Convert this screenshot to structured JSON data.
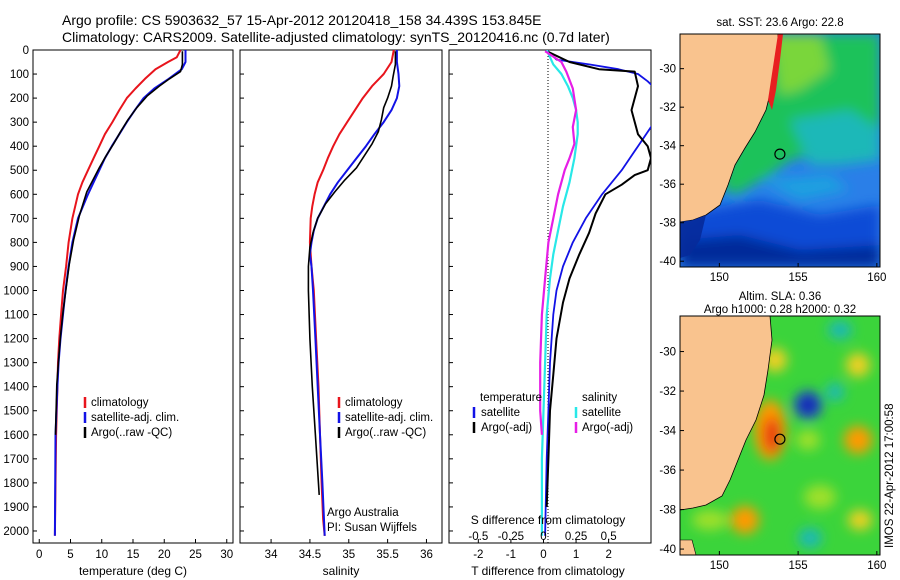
{
  "figure": {
    "title_line1": "Argo profile: CS 5903632_57 15-Apr-2012 20120418_158 34.439S 153.845E",
    "title_line2": "Climatology: CARS2009. Satellite-adjusted climatology: synTS_20120416.nc (0.7d later)",
    "stamp": "IMOS 22-Apr-2012 17:00:58",
    "credit_line1": "Argo Australia",
    "credit_line2": "PI: Susan Wijffels"
  },
  "colors": {
    "climatology": "#e8141c",
    "satellite": "#1212e6",
    "argo": "#000000",
    "satellite_diff": "#28e8e8",
    "argo_adj_diff": "#e61ee6",
    "land": "#f9c38e"
  },
  "depth_axis": {
    "ylim": [
      0,
      2050
    ],
    "ticks": [
      "0",
      "100",
      "200",
      "300",
      "400",
      "500",
      "600",
      "700",
      "800",
      "900",
      "1000",
      "1100",
      "1200",
      "1300",
      "1400",
      "1500",
      "1600",
      "1700",
      "1800",
      "1900",
      "2000"
    ]
  },
  "chart_data": [
    {
      "type": "line",
      "xlabel": "temperature (deg C)",
      "ylabel": "",
      "xlim": [
        -1,
        31
      ],
      "ylim": [
        2050,
        0
      ],
      "xticks": [
        "0",
        "5",
        "10",
        "15",
        "20",
        "25",
        "30"
      ],
      "legend": [
        "climatology",
        "satellite-adj. clim.",
        "Argo(..raw -QC)"
      ],
      "series": [
        {
          "name": "climatology",
          "x": [
            22.6,
            22.0,
            20.6,
            18.6,
            16.9,
            15.4,
            14.0,
            12.8,
            11.7,
            10.5,
            9.6,
            8.7,
            7.8,
            6.9,
            6.2,
            5.3,
            4.7,
            4.3,
            3.8,
            3.5,
            3.2,
            3.0,
            2.9,
            2.7,
            2.6,
            2.5
          ],
          "y": [
            0,
            30,
            50,
            80,
            120,
            160,
            200,
            250,
            300,
            350,
            400,
            450,
            500,
            550,
            600,
            700,
            800,
            900,
            1000,
            1100,
            1200,
            1300,
            1400,
            1600,
            1800,
            2020
          ]
        },
        {
          "name": "satellite-adj. clim.",
          "x": [
            23.4,
            23.4,
            22.8,
            20.7,
            18.4,
            16.7,
            15.3,
            14.0,
            12.8,
            11.6,
            10.5,
            9.6,
            8.7,
            7.8,
            6.2,
            5.3,
            4.7,
            4.2,
            3.8,
            3.4,
            3.1,
            2.9,
            2.6,
            2.5
          ],
          "y": [
            0,
            50,
            80,
            120,
            160,
            200,
            250,
            300,
            350,
            400,
            450,
            500,
            550,
            600,
            700,
            800,
            900,
            1000,
            1100,
            1200,
            1300,
            1400,
            1600,
            2020
          ]
        },
        {
          "name": "Argo(..raw -QC)",
          "x": [
            22.9,
            22.9,
            22.6,
            20.8,
            19.2,
            17.3,
            15.6,
            14.2,
            13.0,
            11.9,
            10.7,
            9.6,
            8.6,
            7.6,
            6.4,
            5.5,
            4.8,
            4.3,
            3.8,
            3.4,
            3.1,
            2.8,
            2.6
          ],
          "y": [
            5,
            60,
            90,
            120,
            150,
            190,
            240,
            290,
            340,
            390,
            440,
            490,
            540,
            590,
            690,
            790,
            890,
            990,
            1090,
            1190,
            1290,
            1390,
            1600
          ]
        }
      ]
    },
    {
      "type": "line",
      "xlabel": "salinity",
      "ylabel": "",
      "xlim": [
        33.6,
        36.2
      ],
      "ylim": [
        2050,
        0
      ],
      "xticks": [
        "34",
        "34.5",
        "35",
        "35.5",
        "36"
      ],
      "legend": [
        "climatology",
        "satellite-adj. clim.",
        "Argo(..raw -QC)"
      ],
      "series": [
        {
          "name": "climatology",
          "x": [
            35.58,
            35.55,
            35.45,
            35.3,
            35.18,
            35.08,
            34.98,
            34.88,
            34.8,
            34.73,
            34.67,
            34.6,
            34.56,
            34.53,
            34.51,
            34.5,
            34.52,
            34.55,
            34.58,
            34.61,
            34.63,
            34.65,
            34.67,
            34.69
          ],
          "y": [
            0,
            50,
            100,
            150,
            200,
            250,
            300,
            350,
            400,
            450,
            500,
            550,
            600,
            650,
            700,
            800,
            900,
            1000,
            1200,
            1400,
            1600,
            1800,
            1950,
            2020
          ]
        },
        {
          "name": "satellite-adj. clim.",
          "x": [
            35.62,
            35.62,
            35.64,
            35.65,
            35.62,
            35.55,
            35.45,
            35.33,
            35.22,
            35.1,
            34.98,
            34.86,
            34.76,
            34.68,
            34.6,
            34.55,
            34.52,
            34.5,
            34.52,
            34.54,
            34.57,
            34.6,
            34.63,
            34.66,
            34.69
          ],
          "y": [
            0,
            50,
            100,
            150,
            200,
            250,
            300,
            350,
            400,
            450,
            500,
            550,
            600,
            650,
            700,
            750,
            800,
            850,
            900,
            1000,
            1200,
            1400,
            1600,
            1800,
            2020
          ]
        },
        {
          "name": "Argo(..raw -QC)",
          "x": [
            35.6,
            35.6,
            35.57,
            35.55,
            35.5,
            35.45,
            35.42,
            35.38,
            35.3,
            35.2,
            35.1,
            34.95,
            34.82,
            34.7,
            34.6,
            34.54,
            34.5,
            34.48,
            34.48,
            34.5,
            34.53,
            34.57,
            34.62
          ],
          "y": [
            5,
            60,
            110,
            150,
            200,
            240,
            290,
            340,
            390,
            440,
            490,
            540,
            590,
            640,
            700,
            760,
            820,
            900,
            1000,
            1200,
            1400,
            1600,
            1850
          ]
        }
      ]
    },
    {
      "type": "line",
      "xlabel": "T difference from climatology",
      "ylabel": "",
      "xlim": [
        -2.9,
        3.3
      ],
      "ylim": [
        2050,
        0
      ],
      "xticks": [
        "-2",
        "-1",
        "0",
        "1",
        "2"
      ],
      "secondary_xlabel": "S difference from climatology",
      "secondary_xticks": [
        "-0.5",
        "-0.25",
        "0",
        "0.25",
        "0.5"
      ],
      "legend_headers": [
        "temperature",
        "salinity"
      ],
      "legend": [
        "satellite",
        "Argo(-adj)",
        "satellite",
        "Argo(-adj)"
      ],
      "series": [
        {
          "name": "satellite",
          "group": "temperature",
          "x": [
            0.1,
            0.4,
            1.4,
            2.3,
            2.9,
            3.2,
            3.5,
            3.6,
            3.4,
            2.9,
            2.4,
            1.8,
            1.3,
            0.9,
            0.6,
            0.4,
            0.3,
            0.2,
            0.15,
            0.1,
            0.05
          ],
          "y": [
            0,
            40,
            60,
            80,
            100,
            130,
            170,
            220,
            300,
            400,
            500,
            600,
            700,
            800,
            900,
            1000,
            1100,
            1300,
            1500,
            1700,
            2020
          ]
        },
        {
          "name": "Argo(-adj)",
          "group": "temperature",
          "x": [
            0.1,
            0.8,
            1.7,
            2.8,
            2.9,
            2.7,
            2.9,
            3.2,
            3.3,
            3.2,
            2.8,
            2.4,
            1.9,
            1.6,
            1.4,
            1.1,
            0.8,
            0.6,
            0.4,
            0.3,
            0.2,
            0.15,
            0.1
          ],
          "y": [
            5,
            50,
            80,
            90,
            150,
            250,
            350,
            400,
            450,
            500,
            520,
            560,
            600,
            680,
            760,
            850,
            950,
            1050,
            1200,
            1350,
            1500,
            1700,
            1900
          ]
        },
        {
          "name": "satellite",
          "group": "salinity",
          "x": [
            0.1,
            0.3,
            0.55,
            0.75,
            0.9,
            1.0,
            1.05,
            1.05,
            0.95,
            0.8,
            0.6,
            0.45,
            0.3,
            0.2,
            0.1,
            0.05,
            0.0,
            -0.05,
            -0.05
          ],
          "y": [
            0,
            60,
            100,
            150,
            200,
            250,
            300,
            350,
            450,
            550,
            650,
            750,
            850,
            950,
            1100,
            1300,
            1500,
            1700,
            2020
          ]
        },
        {
          "name": "Argo(-adj)",
          "group": "salinity",
          "x": [
            0.05,
            0.55,
            0.7,
            0.9,
            1.0,
            0.9,
            0.95,
            0.8,
            0.65,
            0.45,
            0.3,
            0.15,
            0.05,
            -0.05,
            -0.1,
            -0.1,
            -0.05
          ],
          "y": [
            5,
            50,
            90,
            160,
            250,
            320,
            390,
            450,
            500,
            600,
            700,
            800,
            950,
            1100,
            1300,
            1500,
            1600
          ]
        }
      ]
    }
  ],
  "maps": [
    {
      "title": "sat. SST: 23.6  Argo: 22.8",
      "xticks": [
        "150",
        "155",
        "160"
      ],
      "yticks": [
        "-30",
        "-32",
        "-34",
        "-36",
        "-38",
        "-40"
      ],
      "lon_range": [
        147.5,
        160.2
      ],
      "lat_range": [
        -40.3,
        -28.2
      ],
      "float_position": {
        "lon": 153.845,
        "lat": -34.439
      }
    },
    {
      "title_line1": "Altim. SLA: 0.36",
      "title_line2": "Argo h1000: 0.28 h2000: 0.32",
      "xticks": [
        "150",
        "155",
        "160"
      ],
      "yticks": [
        "-30",
        "-32",
        "-34",
        "-36",
        "-38",
        "-40"
      ],
      "lon_range": [
        147.5,
        160.2
      ],
      "lat_range": [
        -40.3,
        -28.2
      ],
      "float_position": {
        "lon": 153.845,
        "lat": -34.439
      }
    }
  ]
}
